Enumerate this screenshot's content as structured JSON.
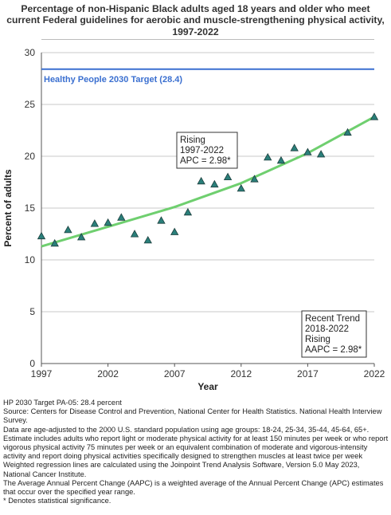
{
  "title_lines": [
    "Percentage of non-Hispanic Black adults aged 18 years and older who meet",
    "current Federal guidelines for aerobic and muscle-strengthening physical activity,",
    "1997-2022"
  ],
  "chart_data": {
    "type": "scatter",
    "xlabel": "Year",
    "ylabel": "Percent of adults",
    "xlim": [
      1997,
      2022
    ],
    "ylim": [
      0,
      30
    ],
    "x_ticks": [
      1997,
      2002,
      2007,
      2012,
      2017,
      2022
    ],
    "y_ticks": [
      0,
      5,
      10,
      15,
      20,
      25,
      30
    ],
    "grid": "horizontal",
    "series": [
      {
        "marker": "triangle",
        "color": "#2a7f7a",
        "points": [
          {
            "x": 1997,
            "y": 12.3
          },
          {
            "x": 1998,
            "y": 11.6
          },
          {
            "x": 1999,
            "y": 12.9
          },
          {
            "x": 2000,
            "y": 12.2
          },
          {
            "x": 2001,
            "y": 13.5
          },
          {
            "x": 2002,
            "y": 13.6
          },
          {
            "x": 2003,
            "y": 14.1
          },
          {
            "x": 2004,
            "y": 12.5
          },
          {
            "x": 2005,
            "y": 11.9
          },
          {
            "x": 2006,
            "y": 13.8
          },
          {
            "x": 2007,
            "y": 12.7
          },
          {
            "x": 2008,
            "y": 14.6
          },
          {
            "x": 2009,
            "y": 17.6
          },
          {
            "x": 2010,
            "y": 17.3
          },
          {
            "x": 2011,
            "y": 18.0
          },
          {
            "x": 2012,
            "y": 16.9
          },
          {
            "x": 2013,
            "y": 17.8
          },
          {
            "x": 2014,
            "y": 19.9
          },
          {
            "x": 2015,
            "y": 19.6
          },
          {
            "x": 2016,
            "y": 20.8
          },
          {
            "x": 2017,
            "y": 20.4
          },
          {
            "x": 2018,
            "y": 20.2
          },
          {
            "x": 2020,
            "y": 22.3
          },
          {
            "x": 2022,
            "y": 23.8
          }
        ]
      }
    ],
    "trend_line": {
      "color": "#6fcf6f",
      "points": [
        {
          "x": 1997,
          "y": 11.3
        },
        {
          "x": 2002,
          "y": 13.2
        },
        {
          "x": 2007,
          "y": 15.1
        },
        {
          "x": 2012,
          "y": 17.4
        },
        {
          "x": 2017,
          "y": 20.3
        },
        {
          "x": 2022,
          "y": 23.8
        }
      ]
    },
    "target": {
      "value": 28.4,
      "label": "Healthy People 2030 Target (28.4)",
      "color": "#3a6fd0"
    },
    "annotations": [
      {
        "lines": [
          "Rising",
          "1997-2022",
          "APC =  2.98*"
        ],
        "position": "center"
      },
      {
        "lines": [
          "Recent Trend",
          "2018-2022",
          "Rising",
          "AAPC =  2.98*"
        ],
        "position": "bottom-right"
      }
    ]
  },
  "notes": [
    "HP 2030 Target PA-05: 28.4 percent",
    "Source: Centers for Disease Control and Prevention, National Center for Health Statistics. National Health Interview Survey.",
    "Data are age-adjusted to the 2000 U.S. standard population using age groups: 18-24, 25-34, 35-44, 45-64, 65+.",
    "Estimate includes adults who report light or moderate physical activity for at least 150 minutes per week or who report vigorous physical activity 75 minutes per week or an equivalent combination of moderate and vigorous-intensity activity and report doing physical activities specifically designed to strengthen muscles at least twice per week",
    "Weighted regression lines are calculated using the Joinpoint Trend Analysis Software, Version 5.0 May 2023, National Cancer Institute.",
    "The Average Annual Percent Change (AAPC) is a weighted average of the Annual Percent Change (APC) estimates that occur over the specified year range.",
    "* Denotes statistical significance."
  ]
}
